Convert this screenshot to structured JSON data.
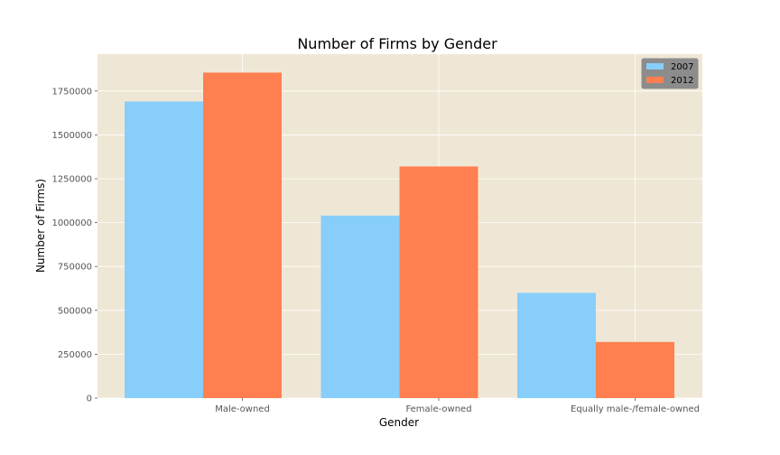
{
  "chart_data": {
    "type": "bar",
    "title": "Number of Firms by Gender",
    "xlabel": "Gender",
    "ylabel": "Number of Firms)",
    "categories": [
      "Male-owned",
      "Female-owned",
      "Equally male-/female-owned"
    ],
    "series": [
      {
        "name": "2007",
        "values": [
          1690000,
          1040000,
          600000
        ],
        "color": "#87cefa"
      },
      {
        "name": "2012",
        "values": [
          1855000,
          1320000,
          320000
        ],
        "color": "#ff7f50"
      }
    ],
    "ylim": [
      0,
      1960000
    ],
    "yticks": [
      0,
      250000,
      500000,
      750000,
      1000000,
      1250000,
      1500000,
      1750000
    ],
    "ytick_labels": [
      "0",
      "250000",
      "500000",
      "750000",
      "1000000",
      "1250000",
      "1500000",
      "1750000"
    ],
    "grid": true,
    "legend_position": "top-right",
    "background_color": "#efe7d5",
    "grid_color": "#ffffff"
  }
}
